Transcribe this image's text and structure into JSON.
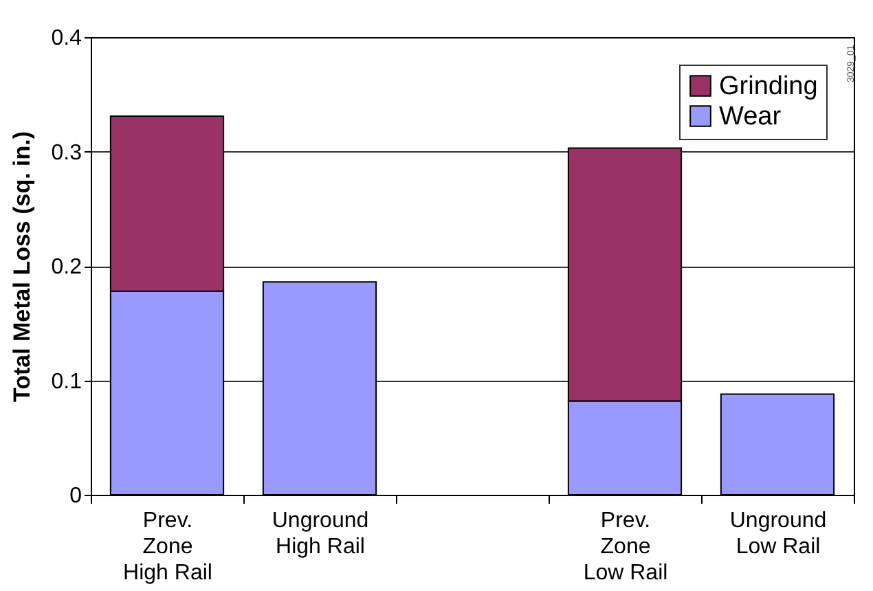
{
  "chart_data": {
    "type": "bar",
    "ylabel": "Total Metal Loss (sq. in.)",
    "categories": [
      "Prev.\nZone\nHigh Rail",
      "Unground\nHigh Rail",
      null,
      "Prev.\nZone\nLow Rail",
      "Unground\nLow Rail"
    ],
    "series": [
      {
        "name": "Wear",
        "color": "#9999ff",
        "values": [
          0.178,
          0.186,
          null,
          0.082,
          0.088
        ]
      },
      {
        "name": "Grinding",
        "color": "#993366",
        "values": [
          0.153,
          null,
          null,
          0.221,
          null
        ]
      }
    ],
    "stacked": true,
    "ylim": [
      0,
      0.4
    ],
    "yticks": [
      0,
      0.1,
      0.2,
      0.3,
      0.4
    ],
    "grid": "y",
    "legend": "top right",
    "annotations": [
      "3029_01"
    ]
  }
}
